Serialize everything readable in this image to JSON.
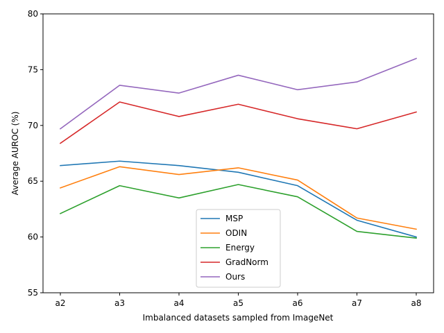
{
  "chart_data": {
    "type": "line",
    "title": "",
    "xlabel": "Imbalanced datasets sampled from ImageNet",
    "ylabel": "Average AUROC (%)",
    "categories": [
      "a2",
      "a3",
      "a4",
      "a5",
      "a6",
      "a7",
      "a8"
    ],
    "ylim": [
      55,
      80
    ],
    "yticks": [
      55,
      60,
      65,
      70,
      75,
      80
    ],
    "grid": false,
    "legend_position": "lower-center",
    "series": [
      {
        "name": "MSP",
        "color": "#1f77b4",
        "values": [
          66.4,
          66.8,
          66.4,
          65.8,
          64.6,
          61.5,
          60.0
        ]
      },
      {
        "name": "ODIN",
        "color": "#ff7f0e",
        "values": [
          64.4,
          66.3,
          65.6,
          66.2,
          65.1,
          61.7,
          60.7
        ]
      },
      {
        "name": "Energy",
        "color": "#2ca02c",
        "values": [
          62.1,
          64.6,
          63.5,
          64.7,
          63.6,
          60.5,
          59.9
        ]
      },
      {
        "name": "GradNorm",
        "color": "#d62728",
        "values": [
          68.4,
          72.1,
          70.8,
          71.9,
          70.6,
          69.7,
          71.2
        ]
      },
      {
        "name": "Ours",
        "color": "#9467bd",
        "values": [
          69.7,
          73.6,
          72.9,
          74.5,
          73.2,
          73.9,
          76.0
        ]
      }
    ]
  }
}
